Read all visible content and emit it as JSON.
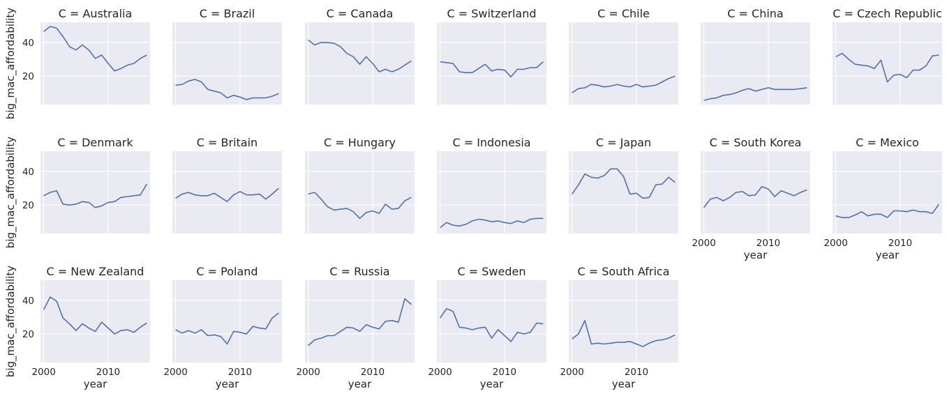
{
  "chart_data": {
    "type": "line",
    "xlabel": "year",
    "ylabel": "big_mac_affordability",
    "title_prefix": "C = ",
    "x": [
      2000,
      2001,
      2002,
      2003,
      2004,
      2005,
      2006,
      2007,
      2008,
      2009,
      2010,
      2011,
      2012,
      2013,
      2014,
      2015,
      2016
    ],
    "xticks": [
      2000,
      2010
    ],
    "yticks": [
      20,
      40
    ],
    "ylim": [
      3,
      52
    ],
    "xlim": [
      1999.5,
      2016.5
    ],
    "grid": true,
    "color": "#4c72b0",
    "panels": [
      {
        "name": "Australia",
        "values": [
          46.5,
          49.5,
          48.5,
          43.5,
          37.5,
          35.5,
          38.5,
          35.5,
          30.5,
          32.5,
          27.5,
          23.0,
          24.5,
          26.5,
          27.5,
          30.5,
          32.5
        ]
      },
      {
        "name": "Brazil",
        "values": [
          14.5,
          15.0,
          17.0,
          18.0,
          16.5,
          12.0,
          11.0,
          10.0,
          7.0,
          8.5,
          7.5,
          6.0,
          7.0,
          7.0,
          7.0,
          8.0,
          9.5
        ]
      },
      {
        "name": "Canada",
        "values": [
          41.5,
          38.5,
          40.0,
          40.0,
          39.5,
          37.5,
          33.5,
          31.5,
          27.0,
          31.5,
          27.5,
          22.5,
          24.0,
          22.5,
          24.0,
          26.5,
          29.0
        ]
      },
      {
        "name": "Switzerland",
        "values": [
          28.5,
          28.0,
          27.5,
          22.5,
          22.0,
          22.0,
          24.5,
          27.0,
          23.0,
          24.0,
          23.5,
          19.5,
          24.0,
          24.0,
          25.0,
          25.0,
          28.5
        ]
      },
      {
        "name": "Chile",
        "values": [
          10.0,
          12.5,
          13.0,
          15.0,
          14.5,
          13.5,
          14.0,
          15.0,
          14.0,
          13.5,
          15.0,
          13.5,
          14.0,
          14.5,
          16.5,
          18.5,
          20.0
        ]
      },
      {
        "name": "China",
        "values": [
          5.5,
          6.5,
          7.0,
          8.5,
          9.0,
          10.0,
          11.5,
          12.5,
          11.0,
          12.0,
          13.0,
          12.0,
          12.0,
          12.0,
          12.0,
          12.5,
          13.0
        ]
      },
      {
        "name": "Czech Republic",
        "values": [
          31.5,
          33.5,
          30.0,
          27.0,
          26.5,
          26.0,
          24.5,
          29.5,
          16.5,
          20.5,
          21.0,
          19.0,
          23.5,
          23.5,
          26.0,
          32.0,
          32.5
        ]
      },
      {
        "name": "Denmark",
        "values": [
          25.5,
          27.5,
          28.5,
          20.5,
          20.0,
          20.5,
          22.0,
          21.5,
          18.5,
          19.5,
          21.5,
          22.0,
          24.5,
          25.0,
          25.5,
          26.0,
          32.5
        ]
      },
      {
        "name": "Britain",
        "values": [
          24.0,
          26.5,
          27.5,
          26.0,
          25.5,
          25.5,
          27.0,
          24.5,
          22.0,
          26.0,
          28.0,
          26.0,
          26.0,
          26.5,
          23.5,
          26.5,
          30.0
        ]
      },
      {
        "name": "Hungary",
        "values": [
          26.5,
          27.5,
          23.5,
          19.0,
          17.0,
          17.5,
          18.0,
          16.0,
          12.0,
          15.5,
          16.5,
          15.0,
          20.5,
          17.5,
          18.0,
          22.5,
          24.5
        ]
      },
      {
        "name": "Indonesia",
        "values": [
          6.5,
          9.5,
          8.0,
          7.5,
          8.5,
          10.5,
          11.5,
          11.0,
          10.0,
          10.5,
          9.5,
          9.0,
          10.5,
          9.5,
          11.5,
          12.0,
          12.0
        ]
      },
      {
        "name": "Japan",
        "values": [
          26.5,
          32.0,
          38.5,
          36.5,
          36.0,
          37.5,
          41.5,
          41.5,
          37.0,
          26.5,
          27.0,
          24.0,
          24.5,
          32.0,
          32.5,
          36.5,
          33.5
        ]
      },
      {
        "name": "South Korea",
        "values": [
          18.5,
          23.5,
          24.5,
          22.5,
          24.5,
          27.5,
          28.0,
          25.5,
          26.0,
          31.0,
          29.5,
          25.0,
          28.5,
          27.0,
          25.5,
          27.5,
          29.0
        ]
      },
      {
        "name": "Mexico",
        "values": [
          13.5,
          12.5,
          12.5,
          14.0,
          16.0,
          13.5,
          14.5,
          14.5,
          12.5,
          16.5,
          16.5,
          16.0,
          17.0,
          16.0,
          16.0,
          15.0,
          20.5
        ]
      },
      {
        "name": "New Zealand",
        "values": [
          34.5,
          42.0,
          39.5,
          29.5,
          26.0,
          22.0,
          26.0,
          23.5,
          21.5,
          27.0,
          23.5,
          20.0,
          22.0,
          22.5,
          21.0,
          24.0,
          26.5
        ]
      },
      {
        "name": "Poland",
        "values": [
          22.5,
          20.5,
          22.0,
          20.5,
          22.5,
          19.0,
          19.5,
          18.5,
          14.0,
          21.5,
          21.0,
          20.0,
          24.5,
          23.5,
          23.0,
          29.5,
          32.5
        ]
      },
      {
        "name": "Russia",
        "values": [
          13.0,
          16.5,
          17.5,
          19.0,
          19.0,
          21.5,
          24.0,
          23.5,
          21.5,
          25.5,
          24.0,
          23.0,
          27.5,
          28.0,
          27.0,
          41.0,
          37.5
        ]
      },
      {
        "name": "Sweden",
        "values": [
          29.5,
          35.0,
          33.5,
          24.0,
          23.5,
          22.5,
          23.5,
          24.0,
          17.5,
          22.5,
          19.0,
          15.5,
          21.0,
          20.0,
          21.0,
          26.5,
          26.0
        ]
      },
      {
        "name": "South Africa",
        "values": [
          17.0,
          20.0,
          28.0,
          14.0,
          14.5,
          14.0,
          14.5,
          15.0,
          15.0,
          15.5,
          14.0,
          12.5,
          14.5,
          16.0,
          16.5,
          17.5,
          19.5
        ]
      }
    ]
  }
}
